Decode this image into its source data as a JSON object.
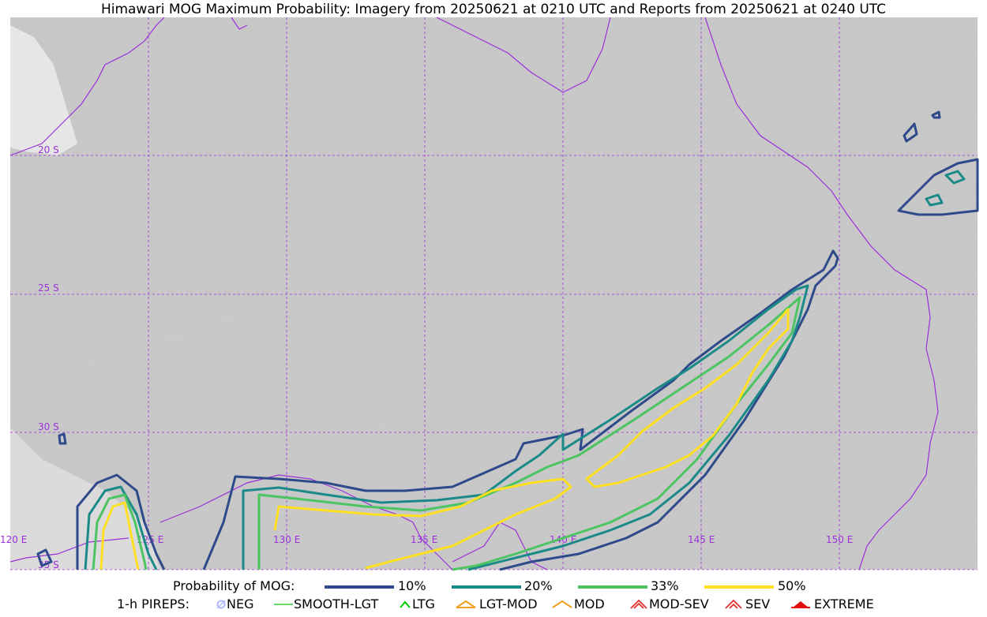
{
  "title": "Himawari MOG Maximum Probability: Imagery from 20250621 at 0210 UTC and Reports from 20250621 at 0240 UTC",
  "map": {
    "lat_labels": [
      "20 S",
      "25 S",
      "30 S",
      "35 S"
    ],
    "lon_labels": [
      "120 E",
      "125 E",
      "130 E",
      "135 E",
      "140 E",
      "145 E",
      "150 E"
    ],
    "coastline_color": "#9b30d8",
    "grid_color": "#9b30d8"
  },
  "legend": {
    "probability_label": "Probability of MOG:",
    "probability_levels": [
      {
        "label": "10%",
        "color": "#2e4a8a"
      },
      {
        "label": "20%",
        "color": "#1a8a88"
      },
      {
        "label": "33%",
        "color": "#4cc462"
      },
      {
        "label": "50%",
        "color": "#fde021"
      }
    ],
    "pireps_label": "1-h PIREPS:",
    "pireps": [
      {
        "label": "NEG",
        "icon": "neg-icon",
        "color": "#b0b8ff"
      },
      {
        "label": "SMOOTH-LGT",
        "icon": "smooth-lgt-icon",
        "color": "#33cc33"
      },
      {
        "label": "LTG",
        "icon": "ltg-icon",
        "color": "#00cc00"
      },
      {
        "label": "LGT-MOD",
        "icon": "lgt-mod-icon",
        "color": "#f0a020"
      },
      {
        "label": "MOD",
        "icon": "mod-icon",
        "color": "#f0a020"
      },
      {
        "label": "MOD-SEV",
        "icon": "mod-sev-icon",
        "color": "#e03030"
      },
      {
        "label": "SEV",
        "icon": "sev-icon",
        "color": "#e03030"
      },
      {
        "label": "EXTREME",
        "icon": "extreme-icon",
        "color": "#e01010"
      }
    ]
  }
}
